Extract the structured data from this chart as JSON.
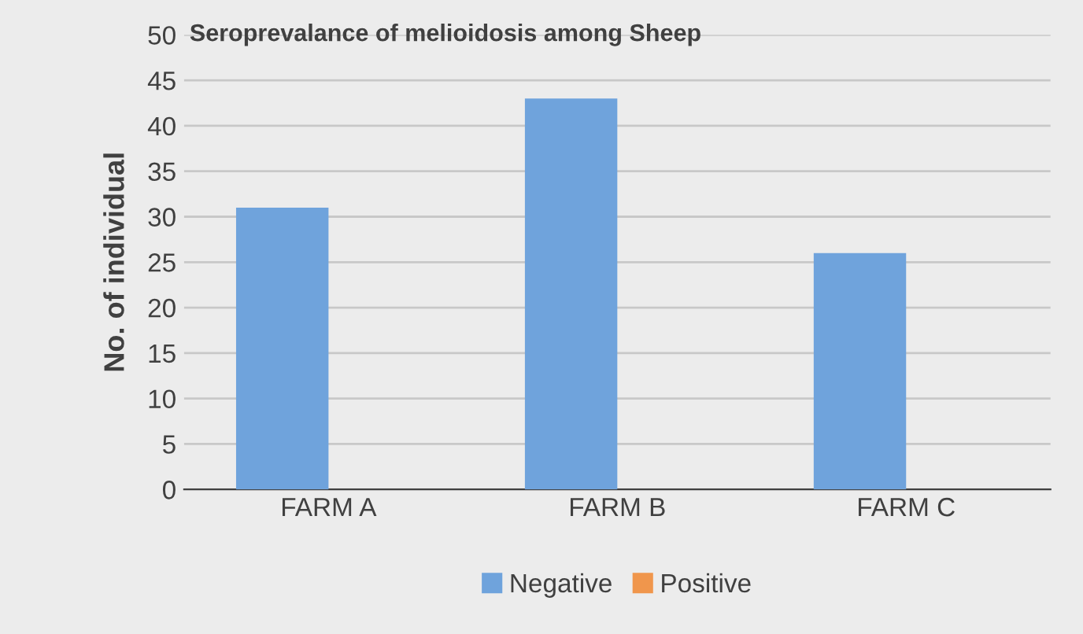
{
  "chart_data": {
    "type": "bar",
    "title": "Seroprevalance of melioidosis among Sheep",
    "ylabel": "No. of individual",
    "categories": [
      "FARM A",
      "FARM B",
      "FARM C"
    ],
    "series": [
      {
        "name": "Negative",
        "color": "#6fa3dc",
        "values": [
          31,
          43,
          26
        ]
      },
      {
        "name": "Positive",
        "color": "#f0964c",
        "values": [
          0,
          0,
          0
        ]
      }
    ],
    "ylim": [
      0,
      50
    ],
    "yticks": [
      0,
      5,
      10,
      15,
      20,
      25,
      30,
      35,
      40,
      45,
      50
    ],
    "grid": "y",
    "legend": "bottom"
  }
}
